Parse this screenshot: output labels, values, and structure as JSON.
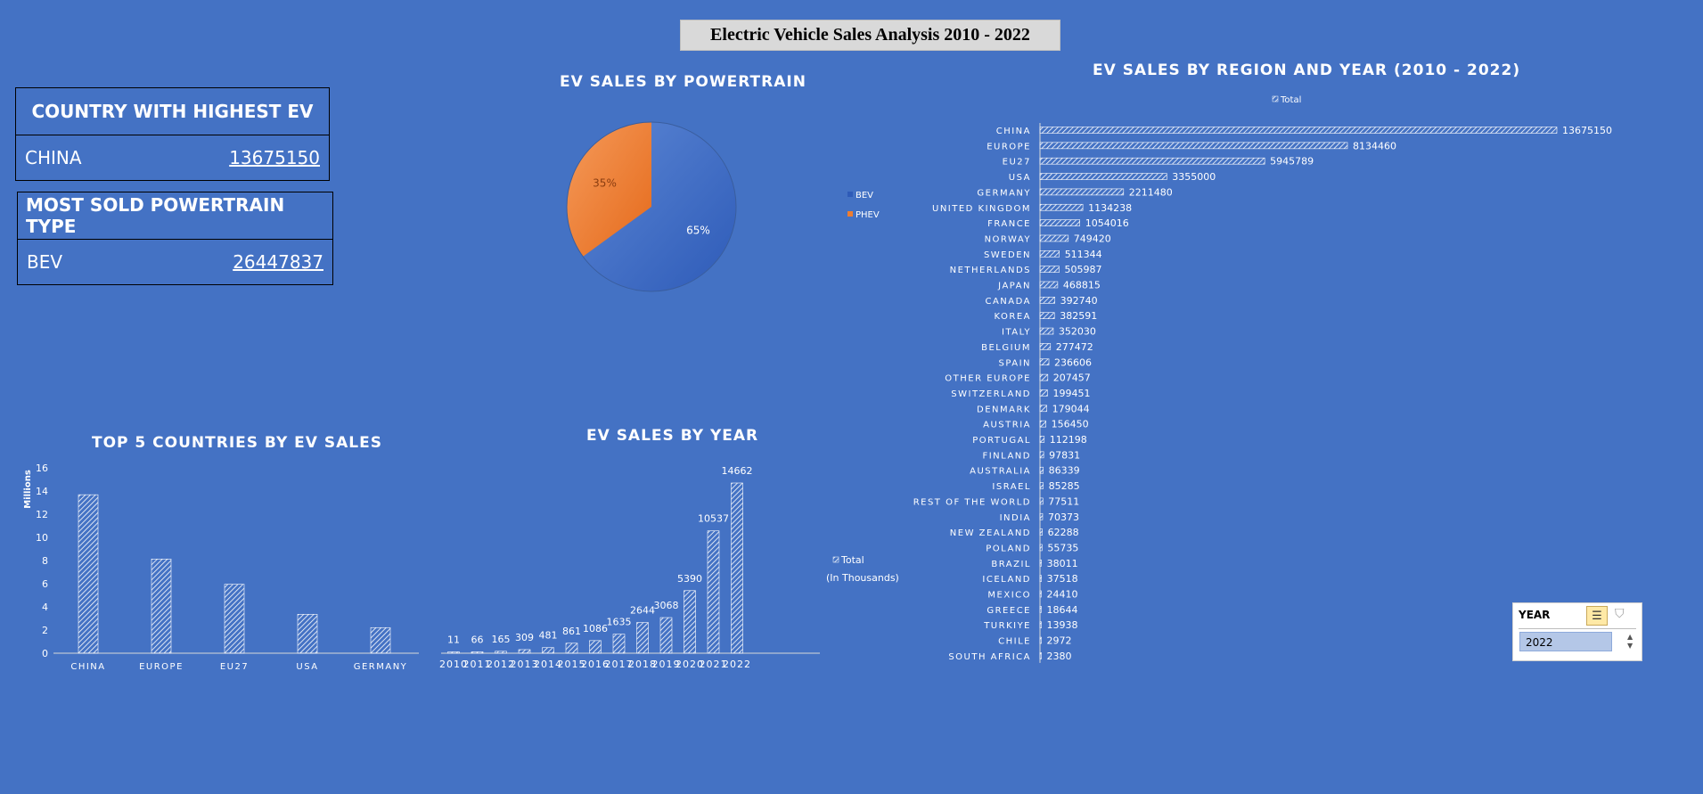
{
  "title": "Electric Vehicle Sales Analysis 2010 - 2022",
  "kpi_country": {
    "header": "COUNTRY WITH HIGHEST EV",
    "name": "CHINA",
    "value": "13675150"
  },
  "kpi_powertrain": {
    "header": "MOST SOLD POWERTRAIN TYPE",
    "name": "BEV",
    "value": "26447837"
  },
  "slicer": {
    "title": "YEAR",
    "selected": "2022"
  },
  "colors": {
    "background": "#4472C4",
    "bev": "#4472C4",
    "phev": "#ED7D31",
    "bars": "#FFFFFF"
  },
  "chart_data": [
    {
      "type": "pie",
      "title": "EV SALES BY POWERTRAIN",
      "labels": [
        "BEV",
        "PHEV"
      ],
      "values": [
        65,
        35
      ],
      "data_labels": [
        "65%",
        "35%"
      ],
      "legend": "right"
    },
    {
      "type": "bar",
      "orientation": "horizontal",
      "title": "EV SALES BY REGION AND YEAR (2010 - 2022)",
      "legend": "top",
      "series": [
        {
          "name": "Total",
          "values": [
            13675150,
            8134460,
            5945789,
            3355000,
            2211480,
            1134238,
            1054016,
            749420,
            511344,
            505987,
            468815,
            392740,
            382591,
            352030,
            277472,
            236606,
            207457,
            199451,
            179044,
            156450,
            112198,
            97831,
            86339,
            85285,
            77511,
            70373,
            62288,
            55735,
            38011,
            37518,
            24410,
            18644,
            13938,
            2972,
            2380
          ]
        }
      ],
      "categories": [
        "CHINA",
        "EUROPE",
        "EU27",
        "USA",
        "GERMANY",
        "UNITED KINGDOM",
        "FRANCE",
        "NORWAY",
        "SWEDEN",
        "NETHERLANDS",
        "JAPAN",
        "CANADA",
        "KOREA",
        "ITALY",
        "BELGIUM",
        "SPAIN",
        "OTHER EUROPE",
        "SWITZERLAND",
        "DENMARK",
        "AUSTRIA",
        "PORTUGAL",
        "FINLAND",
        "AUSTRALIA",
        "ISRAEL",
        "REST OF THE WORLD",
        "INDIA",
        "NEW ZEALAND",
        "POLAND",
        "BRAZIL",
        "ICELAND",
        "MEXICO",
        "GREECE",
        "TURKIYE",
        "CHILE",
        "SOUTH AFRICA"
      ]
    },
    {
      "type": "bar",
      "title": "TOP 5 COUNTRIES BY EV SALES",
      "ylabel": "Millions",
      "categories": [
        "CHINA",
        "EUROPE",
        "EU27",
        "USA",
        "GERMANY"
      ],
      "values": [
        13.68,
        8.13,
        5.95,
        3.36,
        2.21
      ],
      "ylim": [
        0,
        16
      ],
      "yticks": [
        "0",
        "2",
        "4",
        "6",
        "8",
        "10",
        "12",
        "14",
        "16"
      ],
      "grid": false
    },
    {
      "type": "bar",
      "title": "EV SALES BY YEAR",
      "categories": [
        "2010",
        "2011",
        "2012",
        "2013",
        "2014",
        "2015",
        "2016",
        "2017",
        "2018",
        "2019",
        "2020",
        "2021",
        "2022"
      ],
      "values": [
        11,
        66,
        165,
        309,
        481,
        861,
        1086,
        1635,
        2644,
        3068,
        5390,
        10537,
        14662
      ],
      "legend_label": "Total",
      "legend_note": "(In Thousands)",
      "legend": "right"
    }
  ]
}
